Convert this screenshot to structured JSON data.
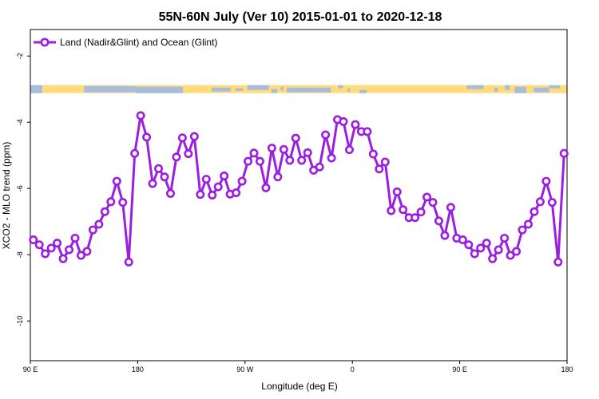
{
  "chart_data": {
    "type": "line",
    "title": "55N-60N July (Ver 10)   2015-01-01 to 2020-12-18",
    "xlabel": "Longitude (deg E)",
    "ylabel": "XCO2 - MLO trend (ppm)",
    "xticks": [
      {
        "value": 90,
        "label": "90 E"
      },
      {
        "value": 180,
        "label": "180"
      },
      {
        "value": 270,
        "label": "90 W"
      },
      {
        "value": 360,
        "label": "0"
      },
      {
        "value": 450,
        "label": "90 E"
      },
      {
        "value": 540,
        "label": "180"
      }
    ],
    "yticks": [
      -2,
      -4,
      -6,
      -8,
      -10
    ],
    "xlim": [
      90,
      540
    ],
    "ylim": [
      -11.2,
      -1.2
    ],
    "grid": false,
    "legend_position": "top-left",
    "color": "#9b1fe0",
    "land_color": "#ffdb7a",
    "ocean_color": "#a8bcdc",
    "land_mask_strip_y": -3,
    "series": [
      {
        "name": "Land (Nadir&Glint) and Ocean (Glint)",
        "x": [
          92.5,
          97.5,
          102.5,
          107.5,
          112.5,
          117.5,
          122.5,
          127.5,
          132.5,
          137.5,
          142.5,
          147.5,
          152.5,
          157.5,
          162.5,
          167.5,
          172.5,
          177.5,
          182.5,
          187.5,
          192.5,
          197.5,
          202.5,
          207.5,
          212.5,
          217.5,
          222.5,
          227.5,
          232.5,
          237.5,
          242.5,
          247.5,
          252.5,
          257.5,
          262.5,
          267.5,
          272.5,
          277.5,
          282.5,
          287.5,
          292.5,
          297.5,
          302.5,
          307.5,
          312.5,
          317.5,
          322.5,
          327.5,
          332.5,
          337.5,
          342.5,
          347.5,
          352.5,
          357.5,
          362.5,
          367.5,
          372.5,
          377.5,
          382.5,
          387.5,
          392.5,
          397.5,
          402.5,
          407.5,
          412.5,
          417.5,
          422.5,
          427.5,
          432.5,
          437.5,
          442.5,
          447.5,
          452.5,
          457.5,
          462.5,
          467.5,
          472.5,
          477.5,
          482.5,
          487.5,
          492.5,
          497.5,
          502.5,
          507.5,
          512.5,
          517.5,
          522.5,
          527.5,
          532.5,
          537.5
        ],
        "y": [
          -7.55,
          -7.7,
          -7.97,
          -7.8,
          -7.65,
          -8.12,
          -7.85,
          -7.5,
          -8.02,
          -7.9,
          -7.25,
          -7.08,
          -6.7,
          -6.4,
          -5.78,
          -6.42,
          -8.22,
          -4.94,
          -3.8,
          -4.45,
          -5.85,
          -5.4,
          -5.65,
          -6.15,
          -5.05,
          -4.47,
          -4.95,
          -4.43,
          -6.18,
          -5.72,
          -6.2,
          -5.95,
          -5.62,
          -6.17,
          -6.13,
          -5.78,
          -5.18,
          -4.93,
          -5.18,
          -5.98,
          -4.78,
          -5.65,
          -4.82,
          -5.15,
          -4.48,
          -5.15,
          -4.92,
          -5.45,
          -5.35,
          -4.38,
          -5.08,
          -3.92,
          -3.98,
          -4.83,
          -4.07,
          -4.28,
          -4.28,
          -4.96,
          -5.41,
          -5.2,
          -6.67,
          -6.1,
          -6.64,
          -6.88,
          -6.88,
          -6.71,
          -6.26,
          -6.42,
          -6.98,
          -7.42,
          -6.57,
          -7.5,
          -7.55,
          -7.7,
          -7.97,
          -7.8,
          -7.65,
          -8.12,
          -7.85,
          -7.5,
          -8.02,
          -7.9,
          -7.25,
          -7.08,
          -6.7,
          -6.4,
          -5.78,
          -6.42,
          -8.22,
          -4.94
        ]
      }
    ]
  }
}
